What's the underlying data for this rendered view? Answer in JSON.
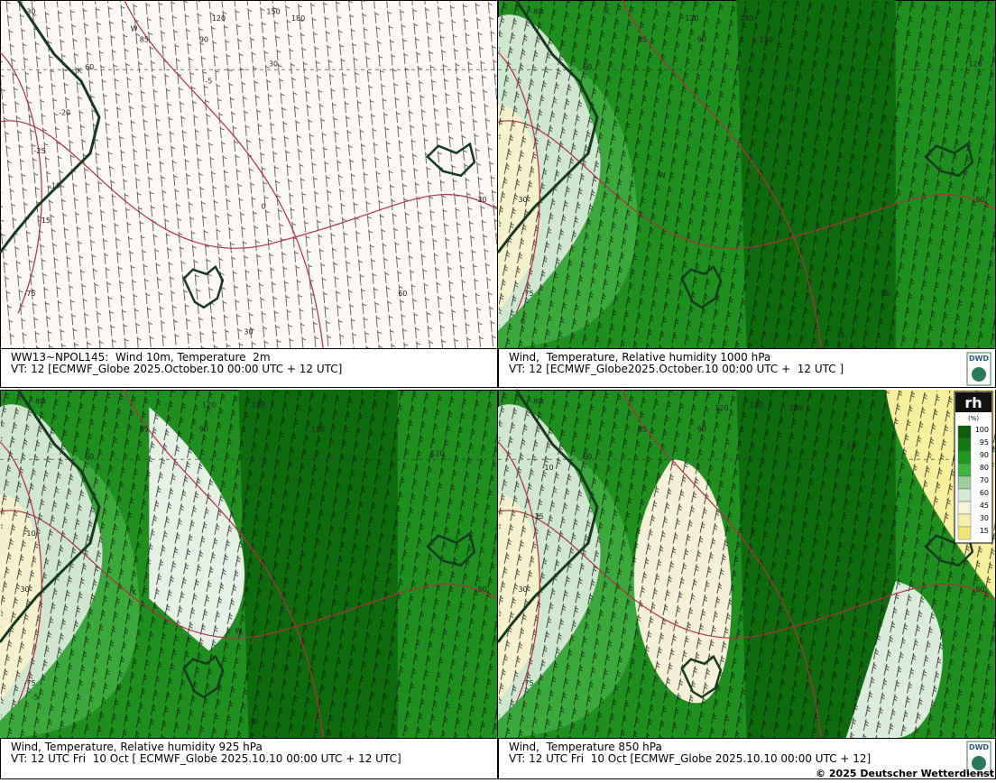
{
  "panels": [
    {
      "caption": [
        "WW13~NPOL145:  Wind 10m, Temperature  2m",
        "VT: 12 [ECMWF_Globe 2025.October.10 00:00 UTC + 12 UTC]"
      ],
      "map_labels": [
        "-30",
        "150",
        "180",
        "120",
        "85",
        "90",
        "60",
        "30",
        "-75",
        "W",
        "K",
        "-25",
        "-20",
        "-15",
        "-10",
        "-5",
        "0",
        "30",
        "60",
        "30"
      ],
      "style": "plain"
    },
    {
      "caption": [
        "Wind,  Temperature, Relative humidity 1000 hPa",
        "VT: 12 [ECMWF_Globe2025.October.10 00:00 UTC +  12 UTC ]"
      ],
      "map_labels": [
        "80",
        "120",
        "150",
        "180",
        "85",
        "90",
        "60",
        "120",
        "30",
        "-75",
        "0",
        "K",
        "W",
        "90",
        "50",
        "-5",
        "0"
      ],
      "style": "green"
    },
    {
      "caption": [
        "Wind, Temperature, Relative humidity 925 hPa",
        "VT: 12 UTC Fri  10 Oct [ ECMWF_Globe 2025.10.10 00:00 UTC + 12 UTC]"
      ],
      "map_labels": [
        "80",
        "120",
        "150",
        "180",
        "85",
        "90",
        "60",
        "120",
        "30",
        "-75",
        "0",
        "K",
        "W",
        "-5",
        "-10",
        "90",
        "30"
      ],
      "style": "green"
    },
    {
      "caption": [
        "Wind,  Temperature 850 hPa",
        "VT: 12 UTC Fri  10 Oct [ECMWF_Globe 2025.10.10 00:00 UTC + 12]"
      ],
      "map_labels": [
        "80",
        "120",
        "150",
        "180",
        "85",
        "90",
        "60",
        "120",
        "30",
        "-75",
        "-10",
        "-15",
        "-5",
        "10",
        "90"
      ],
      "style": "green2"
    }
  ],
  "legend": {
    "title": "rh",
    "unit": "(%)",
    "levels": [
      100,
      95,
      90,
      80,
      70,
      60,
      45,
      30,
      15
    ],
    "colors": [
      "#0b5e0b",
      "#137a13",
      "#1f9a1f",
      "#3fb43f",
      "#9fcf9f",
      "#d7ead7",
      "#f4f4d8",
      "#f6f0a8",
      "#f2e57a"
    ]
  },
  "logo": "DWD",
  "copyright": "© 2025 Deutscher Wetterdienst"
}
